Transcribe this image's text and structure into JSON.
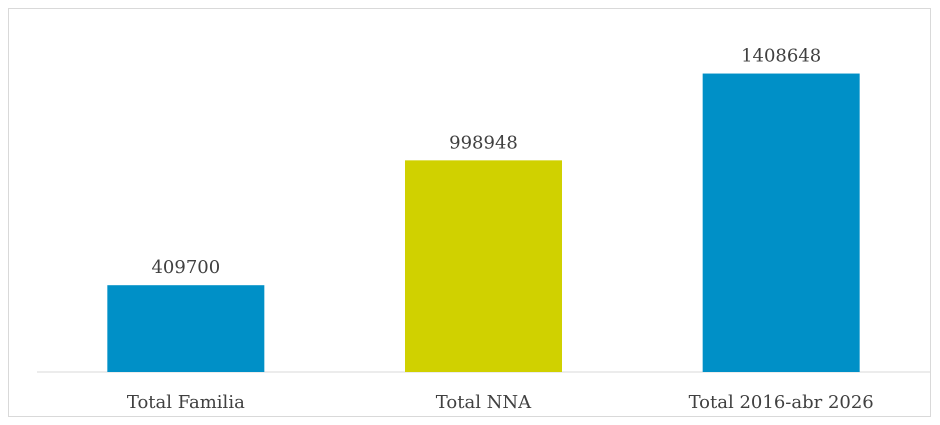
{
  "chart_data": {
    "type": "bar",
    "categories": [
      "Total Familia",
      "Total NNA",
      "Total 2016-abr 2026"
    ],
    "values": [
      409700,
      998948,
      1408648
    ],
    "data_labels": [
      "409700",
      "998948",
      "1408648"
    ],
    "bar_colors": [
      "#0090c7",
      "#d0d100",
      "#0090c7"
    ],
    "ylim": [
      0,
      1600000
    ],
    "grid": false,
    "legend": "none"
  }
}
